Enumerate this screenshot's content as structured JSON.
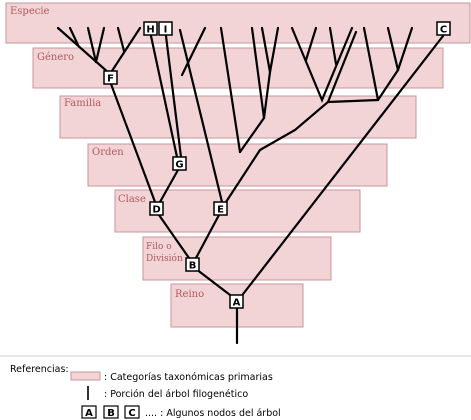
{
  "ranks": [
    {
      "id": "especie",
      "label": "Especie"
    },
    {
      "id": "genero",
      "label": "Género"
    },
    {
      "id": "familia",
      "label": "Familia"
    },
    {
      "id": "orden",
      "label": "Orden"
    },
    {
      "id": "clase",
      "label": "Clase"
    },
    {
      "id": "filo",
      "label_line1": "Filo o",
      "label_line2": "División"
    },
    {
      "id": "reino",
      "label": "Reino"
    }
  ],
  "nodes": [
    "A",
    "B",
    "C",
    "D",
    "E",
    "F",
    "G",
    "H",
    "I"
  ],
  "legend": {
    "title": "Referencias:",
    "categories_text": ": Categorías taxonómicas primarias",
    "branch_text": ": Porción del árbol filogenético",
    "node_examples": [
      "A",
      "B",
      "C"
    ],
    "nodes_text": ".... : Algunos nodos del árbol"
  },
  "colors": {
    "rank_fill": "#f2d4d6",
    "rank_stroke": "#c89598",
    "rank_text": "#b05a5e",
    "line": "#000000",
    "node_fill": "#ffffff"
  }
}
